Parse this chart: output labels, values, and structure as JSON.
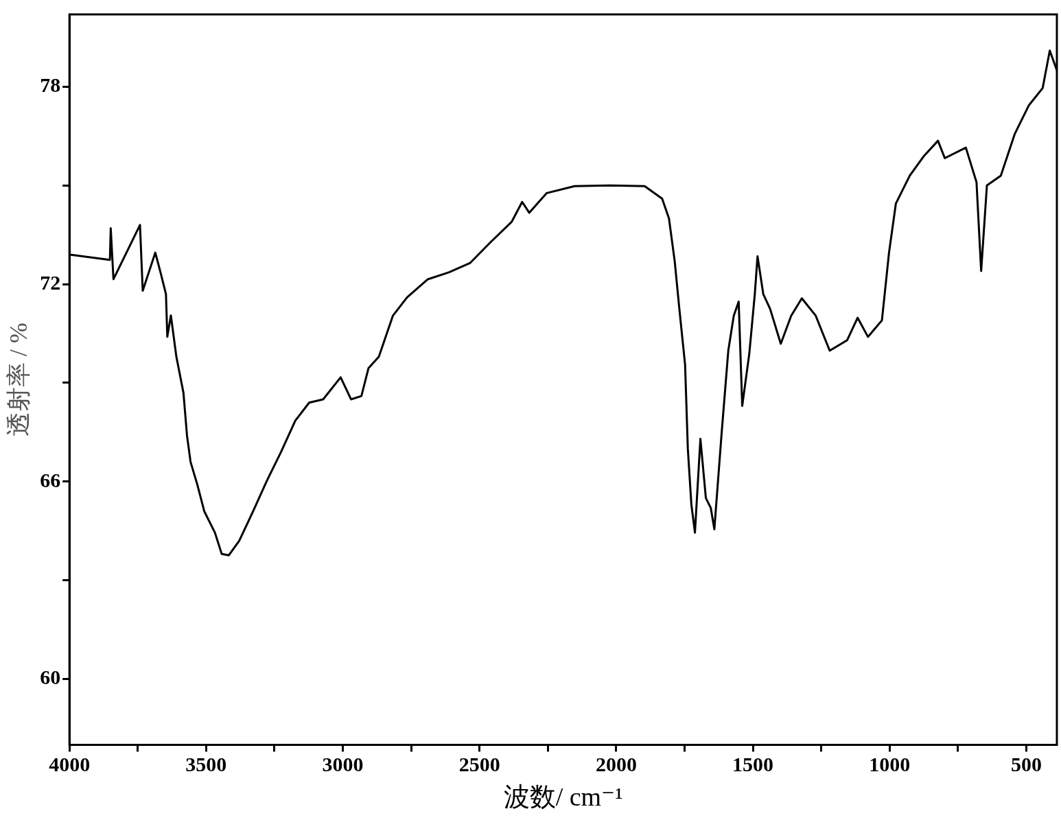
{
  "chart_data": {
    "type": "line",
    "xlabel": "波数/ cm⁻¹",
    "ylabel": "透射率 / %",
    "xlim": [
      4000,
      388
    ],
    "ylim": [
      58,
      80.2
    ],
    "xticks": [
      4000,
      {
        "value": 3750,
        "label": null
      },
      3500,
      {
        "value": 3250,
        "label": null
      },
      3000,
      {
        "value": 2750,
        "label": null
      },
      2500,
      {
        "value": 2250,
        "label": null
      },
      2000,
      {
        "value": 1750,
        "label": null
      },
      1500,
      {
        "value": 1250,
        "label": null
      },
      1000,
      {
        "value": 750,
        "label": null
      },
      500
    ],
    "yticks": [
      60,
      {
        "value": 63,
        "label": null
      },
      66,
      {
        "value": 69,
        "label": null
      },
      72,
      {
        "value": 75,
        "label": null
      },
      78
    ],
    "marker": "none",
    "legend": false,
    "series": [
      {
        "color": "#000000",
        "x": [
          4000,
          3852,
          3849,
          3839,
          3742,
          3732,
          3686,
          3665,
          3647,
          3642,
          3629,
          3609,
          3583,
          3570,
          3557,
          3532,
          3507,
          3468,
          3443,
          3417,
          3379,
          3328,
          3277,
          3226,
          3174,
          3123,
          3072,
          3008,
          2970,
          2932,
          2906,
          2868,
          2817,
          2765,
          2689,
          2612,
          2535,
          2459,
          2382,
          2344,
          2318,
          2254,
          2152,
          2024,
          1896,
          1832,
          1807,
          1786,
          1769,
          1748,
          1738,
          1725,
          1712,
          1692,
          1672,
          1654,
          1641,
          1615,
          1590,
          1570,
          1552,
          1539,
          1513,
          1493,
          1483,
          1462,
          1437,
          1398,
          1360,
          1321,
          1270,
          1219,
          1155,
          1117,
          1079,
          1028,
          1002,
          977,
          926,
          874,
          823,
          798,
          721,
          682,
          665,
          644,
          593,
          542,
          491,
          440,
          414,
          388
        ],
        "values": [
          72.9,
          72.74,
          73.7,
          72.15,
          73.8,
          71.8,
          72.96,
          72.3,
          71.7,
          70.4,
          71.05,
          69.8,
          68.7,
          67.4,
          66.6,
          65.9,
          65.1,
          64.45,
          63.8,
          63.76,
          64.2,
          65.1,
          66.04,
          66.9,
          67.85,
          68.4,
          68.5,
          69.17,
          68.5,
          68.6,
          69.45,
          69.8,
          71.04,
          71.6,
          72.15,
          72.36,
          72.64,
          73.28,
          73.9,
          74.5,
          74.17,
          74.77,
          74.98,
          75.0,
          74.98,
          74.6,
          74.0,
          72.7,
          71.25,
          69.55,
          67.0,
          65.3,
          64.45,
          67.3,
          65.5,
          65.2,
          64.55,
          67.4,
          69.98,
          71.04,
          71.47,
          68.3,
          69.9,
          71.7,
          72.85,
          71.7,
          71.25,
          70.19,
          71.04,
          71.57,
          71.04,
          69.98,
          70.3,
          70.98,
          70.4,
          70.9,
          72.96,
          74.45,
          75.3,
          75.9,
          76.36,
          75.83,
          76.15,
          75.1,
          72.4,
          75.0,
          75.3,
          76.57,
          77.43,
          77.96,
          79.1,
          78.5
        ]
      }
    ]
  }
}
